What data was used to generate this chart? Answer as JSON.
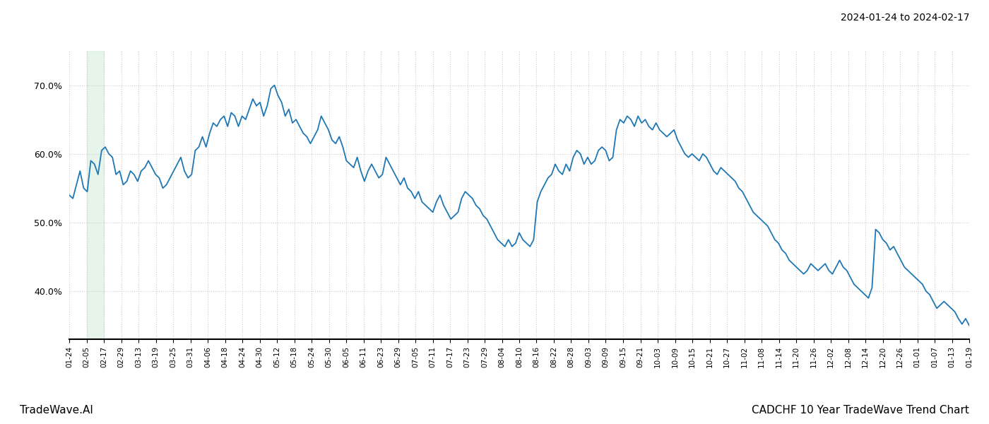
{
  "title_right": "2024-01-24 to 2024-02-17",
  "footer_left": "TradeWave.AI",
  "footer_right": "CADCHF 10 Year TradeWave Trend Chart",
  "line_color": "#1f77b4",
  "line_width": 1.3,
  "shade_color": "#d6eedd",
  "shade_alpha": 0.6,
  "background_color": "#ffffff",
  "grid_color": "#cccccc",
  "grid_style": ":",
  "ylim": [
    33,
    75
  ],
  "yticks": [
    40,
    50,
    60,
    70
  ],
  "x_labels": [
    "01-24",
    "02-05",
    "02-17",
    "02-29",
    "03-13",
    "03-19",
    "03-25",
    "03-31",
    "04-06",
    "04-18",
    "04-24",
    "04-30",
    "05-12",
    "05-18",
    "05-24",
    "05-30",
    "06-05",
    "06-11",
    "06-23",
    "06-29",
    "07-05",
    "07-11",
    "07-17",
    "07-23",
    "07-29",
    "08-04",
    "08-10",
    "08-16",
    "08-22",
    "08-28",
    "09-03",
    "09-09",
    "09-15",
    "09-21",
    "10-03",
    "10-09",
    "10-15",
    "10-21",
    "10-27",
    "11-02",
    "11-08",
    "11-14",
    "11-20",
    "11-26",
    "12-02",
    "12-08",
    "12-14",
    "12-20",
    "12-26",
    "01-01",
    "01-07",
    "01-13",
    "01-19"
  ],
  "shade_start_label": "02-05",
  "shade_end_label": "02-17",
  "values": [
    54.0,
    53.5,
    55.5,
    57.5,
    55.0,
    54.5,
    59.0,
    58.5,
    57.0,
    60.5,
    61.0,
    60.0,
    59.5,
    57.0,
    57.5,
    55.5,
    56.0,
    57.5,
    57.0,
    56.0,
    57.5,
    58.0,
    59.0,
    58.0,
    57.0,
    56.5,
    55.0,
    55.5,
    56.5,
    57.5,
    58.5,
    59.5,
    57.5,
    56.5,
    57.0,
    60.5,
    61.0,
    62.5,
    61.0,
    63.0,
    64.5,
    64.0,
    65.0,
    65.5,
    64.0,
    66.0,
    65.5,
    64.0,
    65.5,
    65.0,
    66.5,
    68.0,
    67.0,
    67.5,
    65.5,
    67.0,
    69.5,
    70.0,
    68.5,
    67.5,
    65.5,
    66.5,
    64.5,
    65.0,
    64.0,
    63.0,
    62.5,
    61.5,
    62.5,
    63.5,
    65.5,
    64.5,
    63.5,
    62.0,
    61.5,
    62.5,
    61.0,
    59.0,
    58.5,
    58.0,
    59.5,
    57.5,
    56.0,
    57.5,
    58.5,
    57.5,
    56.5,
    57.0,
    59.5,
    58.5,
    57.5,
    56.5,
    55.5,
    56.5,
    55.0,
    54.5,
    53.5,
    54.5,
    53.0,
    52.5,
    52.0,
    51.5,
    53.0,
    54.0,
    52.5,
    51.5,
    50.5,
    51.0,
    51.5,
    53.5,
    54.5,
    54.0,
    53.5,
    52.5,
    52.0,
    51.0,
    50.5,
    49.5,
    48.5,
    47.5,
    47.0,
    46.5,
    47.5,
    46.5,
    47.0,
    48.5,
    47.5,
    47.0,
    46.5,
    47.5,
    53.0,
    54.5,
    55.5,
    56.5,
    57.0,
    58.5,
    57.5,
    57.0,
    58.5,
    57.5,
    59.5,
    60.5,
    60.0,
    58.5,
    59.5,
    58.5,
    59.0,
    60.5,
    61.0,
    60.5,
    59.0,
    59.5,
    63.5,
    65.0,
    64.5,
    65.5,
    65.0,
    64.0,
    65.5,
    64.5,
    65.0,
    64.0,
    63.5,
    64.5,
    63.5,
    63.0,
    62.5,
    63.0,
    63.5,
    62.0,
    61.0,
    60.0,
    59.5,
    60.0,
    59.5,
    59.0,
    60.0,
    59.5,
    58.5,
    57.5,
    57.0,
    58.0,
    57.5,
    57.0,
    56.5,
    56.0,
    55.0,
    54.5,
    53.5,
    52.5,
    51.5,
    51.0,
    50.5,
    50.0,
    49.5,
    48.5,
    47.5,
    47.0,
    46.0,
    45.5,
    44.5,
    44.0,
    43.5,
    43.0,
    42.5,
    43.0,
    44.0,
    43.5,
    43.0,
    43.5,
    44.0,
    43.0,
    42.5,
    43.5,
    44.5,
    43.5,
    43.0,
    42.0,
    41.0,
    40.5,
    40.0,
    39.5,
    39.0,
    40.5,
    49.0,
    48.5,
    47.5,
    47.0,
    46.0,
    46.5,
    45.5,
    44.5,
    43.5,
    43.0,
    42.5,
    42.0,
    41.5,
    41.0,
    40.0,
    39.5,
    38.5,
    37.5,
    38.0,
    38.5,
    38.0,
    37.5,
    37.0,
    36.0,
    35.2,
    36.0,
    35.0
  ]
}
